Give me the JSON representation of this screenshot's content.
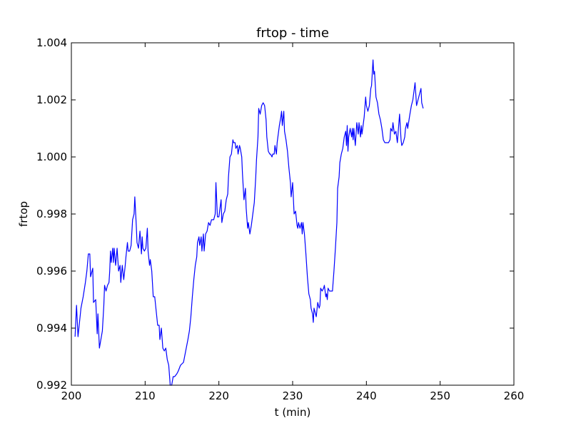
{
  "chart_data": {
    "type": "line",
    "title": "frtop - time",
    "xlabel": "t (min)",
    "ylabel": "frtop",
    "xlim": [
      200,
      260
    ],
    "ylim": [
      0.992,
      1.004
    ],
    "x_ticks": [
      "200",
      "210",
      "220",
      "230",
      "240",
      "250",
      "260"
    ],
    "y_ticks": [
      "0.992",
      "0.994",
      "0.996",
      "0.998",
      "1.000",
      "1.002",
      "1.004"
    ],
    "grid": false,
    "legend": "none",
    "series": [
      {
        "color": "#0000ff",
        "points": [
          [
            200.5,
            0.9937
          ],
          [
            200.7,
            0.9948
          ],
          [
            200.9,
            0.9937
          ],
          [
            201.1,
            0.9942
          ],
          [
            201.3,
            0.9947
          ],
          [
            201.6,
            0.9951
          ],
          [
            201.9,
            0.9956
          ],
          [
            202.1,
            0.996
          ],
          [
            202.3,
            0.9966
          ],
          [
            202.5,
            0.9966
          ],
          [
            202.6,
            0.9958
          ],
          [
            202.8,
            0.996
          ],
          [
            202.9,
            0.9961
          ],
          [
            203.0,
            0.9949
          ],
          [
            203.3,
            0.995
          ],
          [
            203.5,
            0.9938
          ],
          [
            203.6,
            0.9945
          ],
          [
            203.8,
            0.9933
          ],
          [
            204.0,
            0.9936
          ],
          [
            204.2,
            0.9939
          ],
          [
            204.4,
            0.9948
          ],
          [
            204.5,
            0.9955
          ],
          [
            204.7,
            0.9953
          ],
          [
            204.9,
            0.9955
          ],
          [
            205.1,
            0.9956
          ],
          [
            205.2,
            0.996
          ],
          [
            205.3,
            0.9967
          ],
          [
            205.4,
            0.9963
          ],
          [
            205.6,
            0.9968
          ],
          [
            205.7,
            0.9963
          ],
          [
            205.8,
            0.9968
          ],
          [
            206.0,
            0.9962
          ],
          [
            206.2,
            0.9968
          ],
          [
            206.4,
            0.996
          ],
          [
            206.6,
            0.9962
          ],
          [
            206.7,
            0.9956
          ],
          [
            206.9,
            0.9962
          ],
          [
            207.1,
            0.9957
          ],
          [
            207.3,
            0.9962
          ],
          [
            207.4,
            0.9965
          ],
          [
            207.6,
            0.997
          ],
          [
            207.7,
            0.9967
          ],
          [
            207.9,
            0.9967
          ],
          [
            208.1,
            0.9969
          ],
          [
            208.3,
            0.9978
          ],
          [
            208.5,
            0.998
          ],
          [
            208.6,
            0.9986
          ],
          [
            208.8,
            0.9976
          ],
          [
            208.9,
            0.997
          ],
          [
            209.1,
            0.9968
          ],
          [
            209.3,
            0.9974
          ],
          [
            209.5,
            0.9966
          ],
          [
            209.6,
            0.9972
          ],
          [
            209.7,
            0.9968
          ],
          [
            209.9,
            0.9967
          ],
          [
            210.1,
            0.9968
          ],
          [
            210.3,
            0.9975
          ],
          [
            210.4,
            0.9967
          ],
          [
            210.6,
            0.9962
          ],
          [
            210.7,
            0.9964
          ],
          [
            210.9,
            0.996
          ],
          [
            211.1,
            0.9951
          ],
          [
            211.3,
            0.9951
          ],
          [
            211.5,
            0.9946
          ],
          [
            211.7,
            0.9941
          ],
          [
            211.9,
            0.9941
          ],
          [
            212.0,
            0.9936
          ],
          [
            212.2,
            0.994
          ],
          [
            212.4,
            0.9933
          ],
          [
            212.6,
            0.9932
          ],
          [
            212.8,
            0.9933
          ],
          [
            213.0,
            0.9929
          ],
          [
            213.2,
            0.9927
          ],
          [
            213.4,
            0.992
          ],
          [
            213.6,
            0.992
          ],
          [
            213.8,
            0.9923
          ],
          [
            214.0,
            0.9923
          ],
          [
            214.3,
            0.9924
          ],
          [
            214.5,
            0.9925
          ],
          [
            214.8,
            0.9927
          ],
          [
            215.2,
            0.9928
          ],
          [
            215.5,
            0.9932
          ],
          [
            215.8,
            0.9936
          ],
          [
            216.0,
            0.9939
          ],
          [
            216.2,
            0.9944
          ],
          [
            216.4,
            0.9951
          ],
          [
            216.6,
            0.9957
          ],
          [
            216.8,
            0.9962
          ],
          [
            217.0,
            0.9965
          ],
          [
            217.1,
            0.997
          ],
          [
            217.3,
            0.9972
          ],
          [
            217.4,
            0.9969
          ],
          [
            217.6,
            0.9972
          ],
          [
            217.7,
            0.9967
          ],
          [
            217.9,
            0.9973
          ],
          [
            218.0,
            0.9967
          ],
          [
            218.2,
            0.9973
          ],
          [
            218.4,
            0.9974
          ],
          [
            218.6,
            0.9977
          ],
          [
            218.8,
            0.9976
          ],
          [
            219.0,
            0.9978
          ],
          [
            219.3,
            0.9978
          ],
          [
            219.5,
            0.998
          ],
          [
            219.6,
            0.9991
          ],
          [
            219.8,
            0.9979
          ],
          [
            220.0,
            0.9979
          ],
          [
            220.1,
            0.9981
          ],
          [
            220.3,
            0.9985
          ],
          [
            220.4,
            0.9977
          ],
          [
            220.6,
            0.998
          ],
          [
            220.8,
            0.9981
          ],
          [
            221.0,
            0.9985
          ],
          [
            221.2,
            0.9987
          ],
          [
            221.3,
            0.9993
          ],
          [
            221.5,
            1.0
          ],
          [
            221.7,
            1.0001
          ],
          [
            221.9,
            1.0006
          ],
          [
            222.0,
            1.0005
          ],
          [
            222.2,
            1.0005
          ],
          [
            222.3,
            1.0003
          ],
          [
            222.5,
            1.0004
          ],
          [
            222.6,
            1.0001
          ],
          [
            222.8,
            1.0004
          ],
          [
            222.9,
            1.0003
          ],
          [
            223.1,
            1.0
          ],
          [
            223.2,
            0.9994
          ],
          [
            223.4,
            0.9985
          ],
          [
            223.6,
            0.9989
          ],
          [
            223.7,
            0.9982
          ],
          [
            223.9,
            0.9975
          ],
          [
            224.0,
            0.9977
          ],
          [
            224.2,
            0.9973
          ],
          [
            224.4,
            0.9976
          ],
          [
            224.6,
            0.998
          ],
          [
            224.8,
            0.9984
          ],
          [
            225.0,
            0.9993
          ],
          [
            225.1,
            0.9999
          ],
          [
            225.3,
            1.0007
          ],
          [
            225.4,
            1.0017
          ],
          [
            225.6,
            1.0015
          ],
          [
            225.8,
            1.0018
          ],
          [
            226.0,
            1.0019
          ],
          [
            226.2,
            1.0018
          ],
          [
            226.4,
            1.0013
          ],
          [
            226.5,
            1.0007
          ],
          [
            226.7,
            1.0002
          ],
          [
            226.9,
            1.0001
          ],
          [
            227.0,
            1.0001
          ],
          [
            227.2,
            1.0
          ],
          [
            227.3,
            1.0001
          ],
          [
            227.5,
            1.0001
          ],
          [
            227.6,
            1.0004
          ],
          [
            227.8,
            1.0001
          ],
          [
            227.9,
            1.0005
          ],
          [
            228.1,
            1.0009
          ],
          [
            228.2,
            1.0011
          ],
          [
            228.4,
            1.0014
          ],
          [
            228.5,
            1.0016
          ],
          [
            228.6,
            1.0011
          ],
          [
            228.8,
            1.0016
          ],
          [
            228.9,
            1.0009
          ],
          [
            229.1,
            1.0006
          ],
          [
            229.3,
            1.0002
          ],
          [
            229.5,
            0.9996
          ],
          [
            229.7,
            0.9991
          ],
          [
            229.8,
            0.9986
          ],
          [
            230.0,
            0.9991
          ],
          [
            230.2,
            0.998
          ],
          [
            230.4,
            0.9981
          ],
          [
            230.6,
            0.9976
          ],
          [
            230.7,
            0.9975
          ],
          [
            230.8,
            0.9977
          ],
          [
            231.0,
            0.9975
          ],
          [
            231.2,
            0.9977
          ],
          [
            231.3,
            0.9973
          ],
          [
            231.4,
            0.9977
          ],
          [
            231.6,
            0.9973
          ],
          [
            231.8,
            0.9966
          ],
          [
            231.9,
            0.9962
          ],
          [
            232.0,
            0.9958
          ],
          [
            232.2,
            0.9952
          ],
          [
            232.4,
            0.995
          ],
          [
            232.5,
            0.9947
          ],
          [
            232.7,
            0.9945
          ],
          [
            232.8,
            0.9942
          ],
          [
            232.9,
            0.9947
          ],
          [
            233.1,
            0.9945
          ],
          [
            233.2,
            0.9944
          ],
          [
            233.4,
            0.9949
          ],
          [
            233.6,
            0.9947
          ],
          [
            233.7,
            0.9948
          ],
          [
            233.8,
            0.9954
          ],
          [
            234.0,
            0.9953
          ],
          [
            234.2,
            0.9954
          ],
          [
            234.3,
            0.9955
          ],
          [
            234.5,
            0.9951
          ],
          [
            234.6,
            0.9952
          ],
          [
            234.7,
            0.995
          ],
          [
            234.8,
            0.9954
          ],
          [
            235.0,
            0.9953
          ],
          [
            235.2,
            0.9953
          ],
          [
            235.4,
            0.9953
          ],
          [
            235.6,
            0.996
          ],
          [
            235.8,
            0.9968
          ],
          [
            236.0,
            0.9977
          ],
          [
            236.1,
            0.9989
          ],
          [
            236.3,
            0.9993
          ],
          [
            236.4,
            0.9998
          ],
          [
            236.6,
            1.0001
          ],
          [
            236.8,
            1.0003
          ],
          [
            237.0,
            1.0007
          ],
          [
            237.2,
            1.0009
          ],
          [
            237.3,
            1.0004
          ],
          [
            237.4,
            1.0011
          ],
          [
            237.5,
            1.0002
          ],
          [
            237.6,
            1.0007
          ],
          [
            237.8,
            1.001
          ],
          [
            238.0,
            1.0007
          ],
          [
            238.1,
            1.001
          ],
          [
            238.2,
            1.0006
          ],
          [
            238.3,
            1.001
          ],
          [
            238.5,
            1.0004
          ],
          [
            238.7,
            1.0012
          ],
          [
            238.9,
            1.0008
          ],
          [
            239.0,
            1.0012
          ],
          [
            239.2,
            1.0007
          ],
          [
            239.3,
            1.0011
          ],
          [
            239.4,
            1.0008
          ],
          [
            239.6,
            1.0012
          ],
          [
            239.7,
            1.0014
          ],
          [
            239.9,
            1.0021
          ],
          [
            240.0,
            1.0018
          ],
          [
            240.2,
            1.0016
          ],
          [
            240.4,
            1.0018
          ],
          [
            240.6,
            1.0024
          ],
          [
            240.7,
            1.0025
          ],
          [
            240.9,
            1.0034
          ],
          [
            241.0,
            1.0029
          ],
          [
            241.1,
            1.003
          ],
          [
            241.3,
            1.0021
          ],
          [
            241.5,
            1.0019
          ],
          [
            241.7,
            1.0015
          ],
          [
            241.9,
            1.0013
          ],
          [
            242.1,
            1.001
          ],
          [
            242.3,
            1.0006
          ],
          [
            242.5,
            1.0005
          ],
          [
            242.7,
            1.0005
          ],
          [
            243.0,
            1.0005
          ],
          [
            243.2,
            1.0006
          ],
          [
            243.3,
            1.001
          ],
          [
            243.5,
            1.0009
          ],
          [
            243.6,
            1.0012
          ],
          [
            243.8,
            1.0008
          ],
          [
            244.0,
            1.0009
          ],
          [
            244.2,
            1.0005
          ],
          [
            244.5,
            1.0015
          ],
          [
            244.7,
            1.0006
          ],
          [
            244.8,
            1.0004
          ],
          [
            245.0,
            1.0005
          ],
          [
            245.2,
            1.0007
          ],
          [
            245.3,
            1.001
          ],
          [
            245.5,
            1.0012
          ],
          [
            245.6,
            1.001
          ],
          [
            245.9,
            1.0015
          ],
          [
            246.1,
            1.0018
          ],
          [
            246.3,
            1.002
          ],
          [
            246.4,
            1.0022
          ],
          [
            246.6,
            1.0026
          ],
          [
            246.8,
            1.0018
          ],
          [
            247.0,
            1.002
          ],
          [
            247.2,
            1.0022
          ],
          [
            247.4,
            1.0024
          ],
          [
            247.5,
            1.0019
          ],
          [
            247.7,
            1.0017
          ]
        ]
      }
    ]
  }
}
